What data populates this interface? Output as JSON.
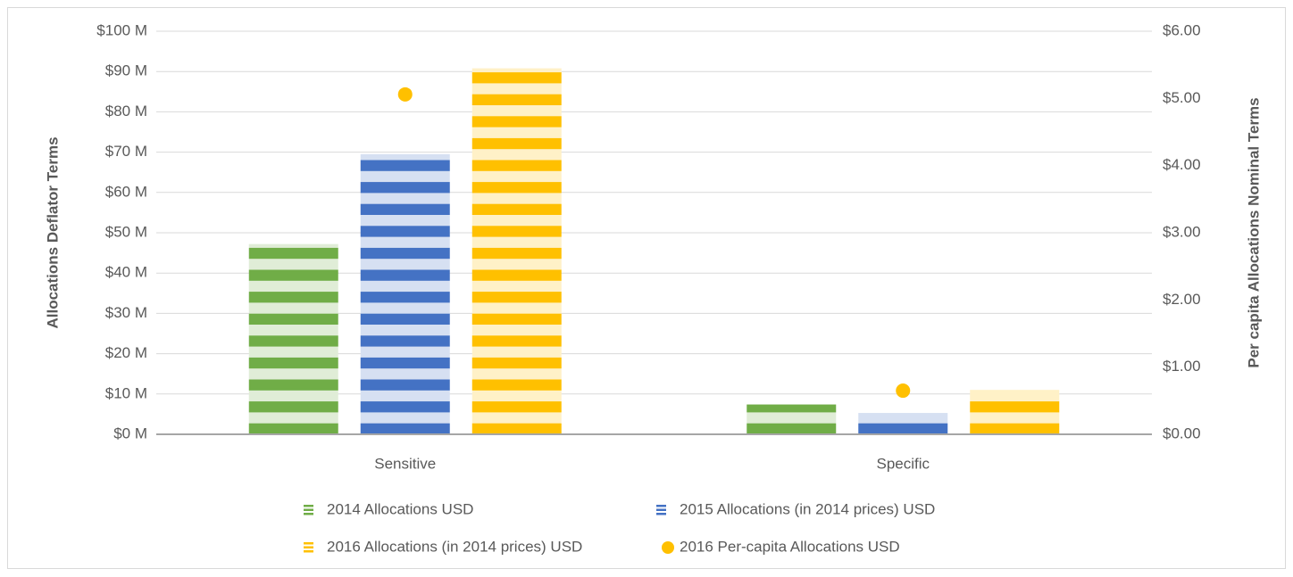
{
  "chart_data": {
    "type": "bar",
    "categories": [
      "Sensitive",
      "Specific"
    ],
    "series": [
      {
        "name": "2014 Allocations USD",
        "color": "#70ad47",
        "values": [
          47.2,
          7.4
        ]
      },
      {
        "name": "2015 Allocations (in 2014 prices) USD",
        "color": "#4472c4",
        "values": [
          69.5,
          5.3
        ]
      },
      {
        "name": "2016 Allocations (in 2014 prices) USD",
        "color": "#ffc000",
        "values": [
          90.8,
          10.9
        ]
      },
      {
        "name": "2016 Per-capita Allocations USD",
        "color": "#ffc000",
        "type": "scatter",
        "axis": "y2",
        "values": [
          5.06,
          0.65
        ]
      }
    ],
    "ylabel": "Allocations Deflator Terms",
    "y2label": "Per capita Allocations Nominal Terms",
    "ylim": [
      0,
      100
    ],
    "yticks": [
      {
        "value": 0,
        "label": "$0 M"
      },
      {
        "value": 10,
        "label": "$10 M"
      },
      {
        "value": 20,
        "label": "$20 M"
      },
      {
        "value": 30,
        "label": "$30 M"
      },
      {
        "value": 40,
        "label": "$40 M"
      },
      {
        "value": 50,
        "label": "$50 M"
      },
      {
        "value": 60,
        "label": "$60 M"
      },
      {
        "value": 70,
        "label": "$70 M"
      },
      {
        "value": 80,
        "label": "$80 M"
      },
      {
        "value": 90,
        "label": "$90 M"
      },
      {
        "value": 100,
        "label": "$100 M"
      }
    ],
    "y2lim": [
      0,
      6
    ],
    "y2ticks": [
      {
        "value": 0,
        "label": "$0.00"
      },
      {
        "value": 1,
        "label": "$1.00"
      },
      {
        "value": 2,
        "label": "$2.00"
      },
      {
        "value": 3,
        "label": "$3.00"
      },
      {
        "value": 4,
        "label": "$4.00"
      },
      {
        "value": 5,
        "label": "$5.00"
      },
      {
        "value": 6,
        "label": "$6.00"
      }
    ],
    "grid": true,
    "legend": "bottom"
  }
}
